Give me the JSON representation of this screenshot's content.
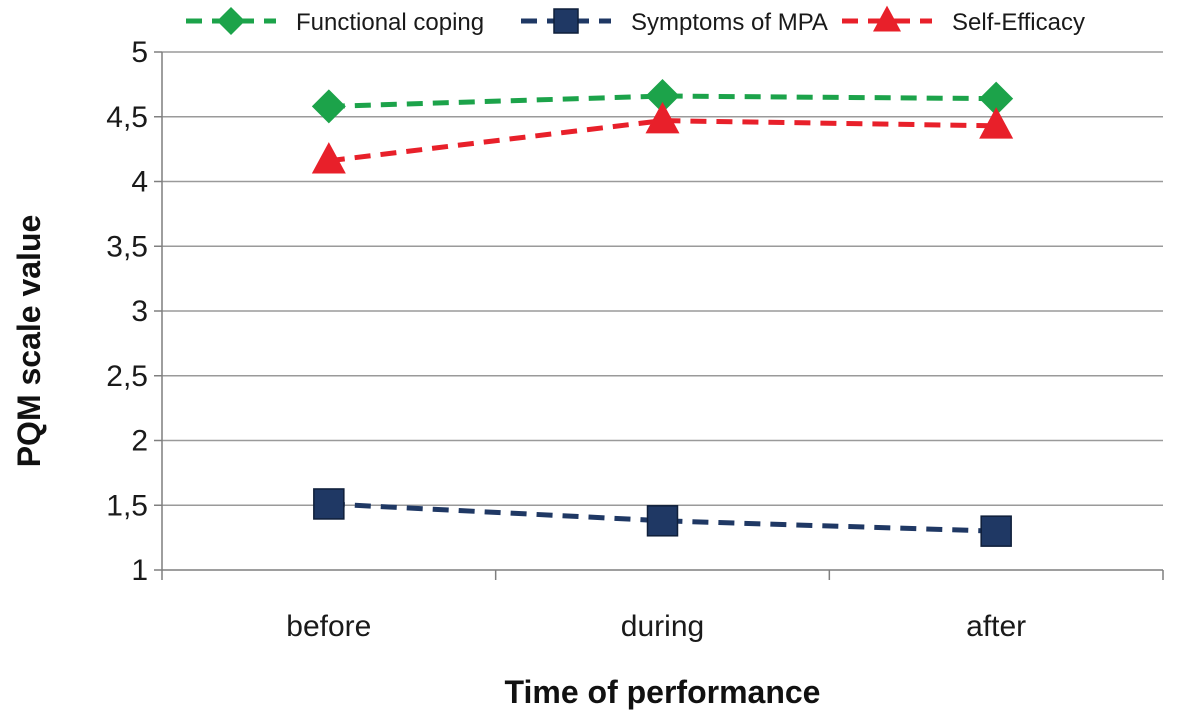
{
  "chart_data": {
    "type": "line",
    "title": "",
    "xlabel": "Time of performance",
    "ylabel": "PQM scale value",
    "categories": [
      "before",
      "during",
      "after"
    ],
    "y_ticks": [
      "1",
      "1,5",
      "2",
      "2,5",
      "3",
      "3,5",
      "4",
      "4,5",
      "5"
    ],
    "ylim": [
      1,
      5
    ],
    "grid": true,
    "legend_position": "top",
    "series": [
      {
        "name": "Functional coping",
        "values": [
          4.58,
          4.66,
          4.64
        ],
        "color": "#1ca34a",
        "marker": "diamond"
      },
      {
        "name": "Symptoms of MPA",
        "values": [
          1.51,
          1.38,
          1.3
        ],
        "color": "#1f3864",
        "marker": "square"
      },
      {
        "name": "Self-Efficacy",
        "values": [
          4.16,
          4.47,
          4.43
        ],
        "color": "#e8202a",
        "marker": "triangle"
      }
    ]
  }
}
